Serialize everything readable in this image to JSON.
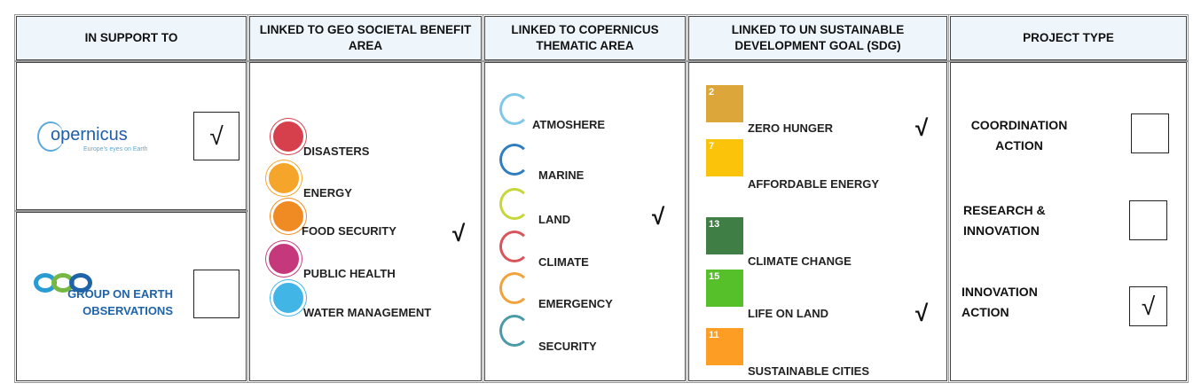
{
  "check_mark": "√",
  "headers": [
    "IN SUPPORT TO",
    "LINKED TO GEO SOCIETAL BENEFIT AREA",
    "LINKED TO COPERNICUS THEMATIC AREA",
    "LINKED TO UN SUSTAINABLE DEVELOPMENT GOAL (SDG)",
    "PROJECT TYPE"
  ],
  "support": [
    {
      "name": "opernicus",
      "tagline": "Europe's eyes on Earth",
      "checked": true
    },
    {
      "name": "GROUP ON EARTH OBSERVATIONS",
      "checked": false
    }
  ],
  "geo_areas": [
    {
      "label": "DISASTERS",
      "color": "#d6404c",
      "checked": false
    },
    {
      "label": "ENERGY",
      "color": "#f4a52a",
      "checked": false
    },
    {
      "label": "FOOD SECURITY",
      "color": "#ef8b22",
      "checked": true
    },
    {
      "label": "PUBLIC HEALTH",
      "color": "#c5397c",
      "checked": false
    },
    {
      "label": "WATER MANAGEMENT",
      "color": "#41b6e6",
      "checked": false
    }
  ],
  "copernicus_areas": [
    {
      "label": "ATMOSHERE",
      "color": "#7fc8e8",
      "checked": false
    },
    {
      "label": "MARINE",
      "color": "#2f7fc0",
      "checked": false
    },
    {
      "label": "LAND",
      "color": "#c7d63a",
      "checked": true
    },
    {
      "label": "CLIMATE",
      "color": "#d9545b",
      "checked": false
    },
    {
      "label": "EMERGENCY",
      "color": "#f2a23a",
      "checked": false
    },
    {
      "label": "SECURITY",
      "color": "#4a9aa8",
      "checked": false
    }
  ],
  "sdgs": [
    {
      "goal": "2",
      "label": "ZERO HUNGER",
      "color": "#dda63a",
      "checked": true
    },
    {
      "goal": "7",
      "label": "AFFORDABLE ENERGY",
      "color": "#fcc30b",
      "checked": false
    },
    {
      "goal": "13",
      "label": "CLIMATE CHANGE",
      "color": "#3f7e44",
      "checked": false
    },
    {
      "goal": "15",
      "label": "LIFE ON LAND",
      "color": "#56c02b",
      "checked": true
    },
    {
      "goal": "11",
      "label": "SUSTAINABLE CITIES",
      "color": "#fd9d24",
      "checked": false
    }
  ],
  "project_types": [
    {
      "label": "COORDINATION ACTION",
      "checked": false
    },
    {
      "label": "RESEARCH & INNOVATION",
      "checked": false
    },
    {
      "label": "INNOVATION ACTION",
      "checked": true
    }
  ]
}
